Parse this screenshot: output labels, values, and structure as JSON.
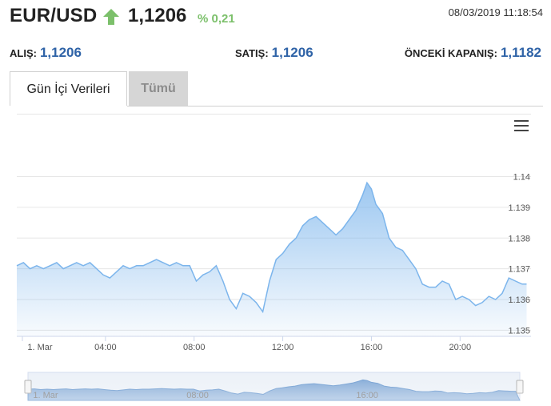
{
  "header": {
    "pair": "EUR/USD",
    "price": "1,1206",
    "change": "% 0,21",
    "timestamp": "08/03/2019 11:18:54",
    "direction_icon": "up-arrow-icon",
    "up_color": "#7cc06b"
  },
  "quotes": [
    {
      "label": "ALIŞ:",
      "value": "1,1206"
    },
    {
      "label": "SATIŞ:",
      "value": "1,1206"
    },
    {
      "label": "ÖNCEKİ KAPANIŞ:",
      "value": "1,1182"
    }
  ],
  "tabs": [
    {
      "label": "Gün İçi Verileri",
      "active": true
    },
    {
      "label": "Tümü",
      "active": false
    }
  ],
  "chart_menu_icon": "hamburger-menu-icon",
  "chart_data": {
    "type": "area",
    "title": "",
    "xlabel": "",
    "ylabel": "",
    "x_ticks": [
      "1. Mar",
      "04:00",
      "08:00",
      "12:00",
      "16:00",
      "20:00"
    ],
    "y_ticks": [
      "1.135",
      "1.136",
      "1.137",
      "1.138",
      "1.139",
      "1.14"
    ],
    "ylim": [
      1.1348,
      1.1415
    ],
    "xlim": [
      0,
      23.2
    ],
    "series_color": "#7cb5ec",
    "grid": true,
    "series": [
      {
        "x": [
          0.0,
          0.3,
          0.6,
          0.9,
          1.2,
          1.5,
          1.8,
          2.1,
          2.4,
          2.7,
          3.0,
          3.3,
          3.6,
          3.9,
          4.2,
          4.5,
          4.8,
          5.1,
          5.4,
          5.7,
          6.0,
          6.3,
          6.6,
          6.9,
          7.2,
          7.5,
          7.8,
          8.1,
          8.4,
          8.7,
          9.0,
          9.3,
          9.6,
          9.9,
          10.2,
          10.5,
          10.8,
          11.1,
          11.4,
          11.7,
          12.0,
          12.3,
          12.6,
          12.9,
          13.2,
          13.5,
          13.8,
          14.1,
          14.4,
          14.7,
          15.0,
          15.3,
          15.6,
          15.8,
          16.0,
          16.2,
          16.5,
          16.8,
          17.1,
          17.4,
          17.7,
          18.0,
          18.3,
          18.6,
          18.9,
          19.2,
          19.5,
          19.8,
          20.1,
          20.4,
          20.7,
          21.0,
          21.3,
          21.6,
          21.9,
          22.2,
          22.5,
          22.8,
          23.0
        ],
        "values": [
          1.1371,
          1.1372,
          1.137,
          1.1371,
          1.137,
          1.1371,
          1.1372,
          1.137,
          1.1371,
          1.1372,
          1.1371,
          1.1372,
          1.137,
          1.1368,
          1.1367,
          1.1369,
          1.1371,
          1.137,
          1.1371,
          1.1371,
          1.1372,
          1.1373,
          1.1372,
          1.1371,
          1.1372,
          1.1371,
          1.1371,
          1.1366,
          1.1368,
          1.1369,
          1.1371,
          1.1366,
          1.136,
          1.1357,
          1.1362,
          1.1361,
          1.1359,
          1.1356,
          1.1366,
          1.1373,
          1.1375,
          1.1378,
          1.138,
          1.1384,
          1.1386,
          1.1387,
          1.1385,
          1.1383,
          1.1381,
          1.1383,
          1.1386,
          1.1389,
          1.1394,
          1.1398,
          1.1396,
          1.1391,
          1.1388,
          1.138,
          1.1377,
          1.1376,
          1.1373,
          1.137,
          1.1365,
          1.1364,
          1.1364,
          1.1366,
          1.1365,
          1.136,
          1.1361,
          1.136,
          1.1358,
          1.1359,
          1.1361,
          1.136,
          1.1362,
          1.1367,
          1.1366,
          1.1365,
          1.1365
        ]
      }
    ]
  }
}
